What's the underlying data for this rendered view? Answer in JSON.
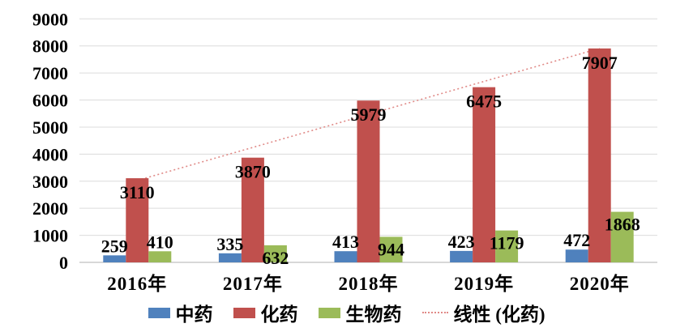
{
  "chart_data": {
    "type": "bar",
    "title": "",
    "categories": [
      "2016年",
      "2017年",
      "2018年",
      "2019年",
      "2020年"
    ],
    "series": [
      {
        "name": "中药",
        "color": "#4f81bd",
        "values": [
          259,
          335,
          413,
          423,
          472
        ]
      },
      {
        "name": "化药",
        "color": "#c0504d",
        "values": [
          3110,
          3870,
          5979,
          6475,
          7907
        ]
      },
      {
        "name": "生物药",
        "color": "#9bbb59",
        "values": [
          410,
          632,
          944,
          1179,
          1868
        ]
      }
    ],
    "trendline": {
      "label": "线性 (化药)",
      "on_series": "化药",
      "fit": "linear",
      "color": "#e08a87",
      "style": "dotted"
    },
    "y_axis": {
      "min": 0,
      "max": 9000,
      "step": 1000,
      "tick_labels": [
        "0",
        "1000",
        "2000",
        "3000",
        "4000",
        "5000",
        "6000",
        "7000",
        "8000",
        "9000"
      ]
    },
    "grid": true,
    "data_labels": true,
    "legend_position": "bottom",
    "colors": {
      "gridline": "#dcdcdc",
      "axis_line": "#c0c0c0",
      "text": "#000000",
      "background": "#ffffff"
    }
  },
  "legend": {
    "items": [
      {
        "label": "中药",
        "swatch": "blue-square"
      },
      {
        "label": "化药",
        "swatch": "red-square"
      },
      {
        "label": "生物药",
        "swatch": "green-square"
      },
      {
        "label": "线性 (化药)",
        "swatch": "dotted-line"
      }
    ]
  }
}
